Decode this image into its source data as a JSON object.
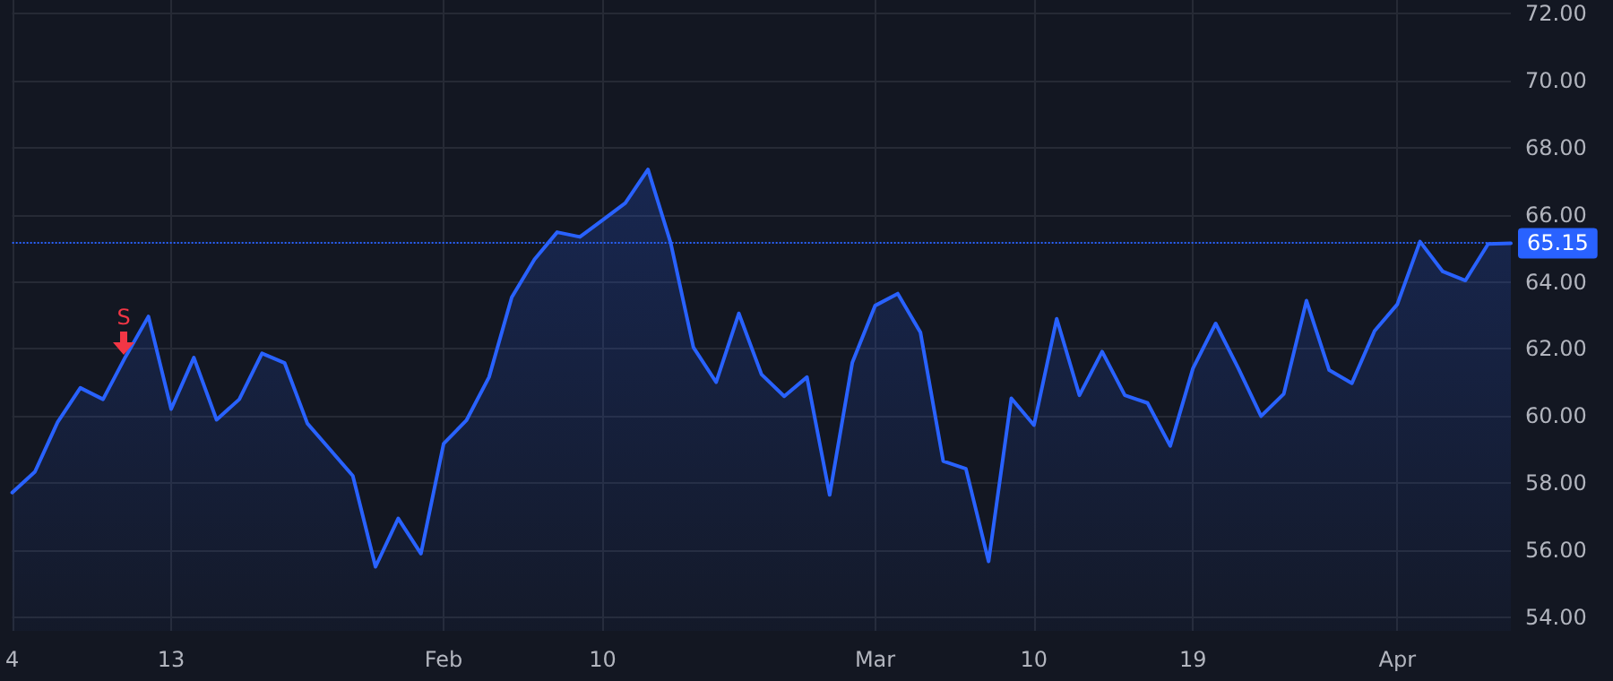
{
  "chart_data": {
    "type": "area",
    "categories": [
      "4",
      null,
      null,
      null,
      null,
      null,
      null,
      "13",
      null,
      null,
      null,
      null,
      null,
      null,
      null,
      null,
      null,
      null,
      null,
      "Feb",
      null,
      null,
      null,
      null,
      null,
      null,
      "10",
      null,
      null,
      null,
      null,
      null,
      null,
      null,
      null,
      null,
      null,
      null,
      "Mar",
      null,
      null,
      null,
      null,
      null,
      null,
      "10",
      null,
      null,
      null,
      null,
      null,
      null,
      "19",
      null,
      null,
      null,
      null,
      null,
      null,
      null,
      null,
      "Apr",
      null,
      null,
      null,
      null,
      null
    ],
    "series": [
      {
        "color": "#2962ff",
        "values": [
          57.72,
          58.34,
          59.82,
          60.84,
          60.5,
          61.78,
          62.97,
          60.21,
          61.74,
          59.89,
          60.5,
          61.87,
          61.58,
          59.78,
          59.0,
          58.22,
          55.51,
          56.95,
          55.9,
          59.18,
          59.87,
          61.16,
          63.54,
          64.67,
          65.48,
          65.34,
          65.84,
          66.35,
          67.35,
          65.16,
          62.05,
          61.01,
          63.06,
          61.24,
          60.59,
          61.16,
          57.65,
          61.6,
          63.29,
          63.65,
          62.49,
          58.66,
          58.43,
          55.67,
          60.53,
          59.73,
          62.9,
          60.62,
          61.92,
          60.62,
          60.39,
          59.11,
          61.42,
          62.76,
          61.42,
          60.0,
          60.66,
          63.44,
          61.37,
          60.98,
          62.54,
          63.33,
          65.2,
          64.31,
          64.04,
          65.13,
          65.15
        ]
      }
    ],
    "ylim": [
      53.6,
      72.4
    ],
    "yticks": [
      {
        "value": 54,
        "label": "54.00"
      },
      {
        "value": 56,
        "label": "56.00"
      },
      {
        "value": 58,
        "label": "58.00"
      },
      {
        "value": 60,
        "label": "60.00"
      },
      {
        "value": 62,
        "label": "62.00"
      },
      {
        "value": 64,
        "label": "64.00"
      },
      {
        "value": 66,
        "label": "66.00"
      },
      {
        "value": 68,
        "label": "68.00"
      },
      {
        "value": 70,
        "label": "70.00"
      },
      {
        "value": 72,
        "label": "72.00"
      }
    ],
    "ref_lines": [
      {
        "axis": "y",
        "value": 65.15,
        "label": "65.15",
        "color": "#2962ff",
        "line_style": "dotted"
      }
    ],
    "annotations": [
      "S"
    ],
    "grid": true,
    "marker": "none",
    "line_style": "solid"
  }
}
